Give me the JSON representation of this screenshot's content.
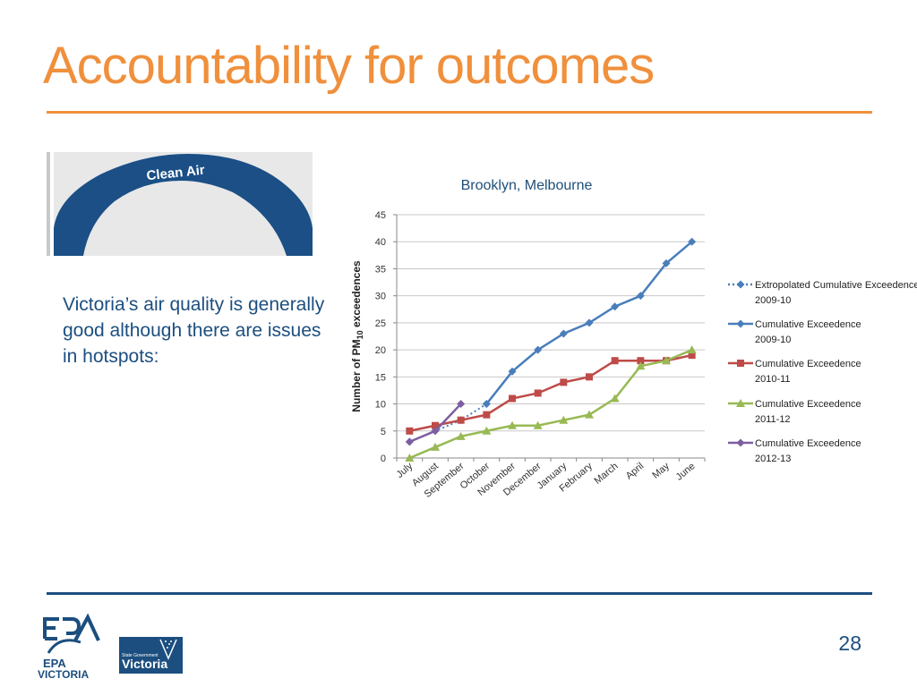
{
  "slide": {
    "title": "Accountability for outcomes",
    "body_text": "Victoria’s air quality is generally good although there are issues in hotspots:",
    "page_number": "28",
    "sign_text": "Clean Air",
    "colors": {
      "title": "#f0903c",
      "rule_top": "#f0903c",
      "rule_bottom": "#1c4e7f",
      "body_text": "#1c4e7f",
      "sign_blue": "#1b4f86"
    }
  },
  "logos": {
    "epa": {
      "line1": "EPA",
      "line2": "VICTORIA"
    },
    "vic": {
      "line1": "State Government",
      "line2": "Victoria"
    }
  },
  "chart_data": {
    "type": "line",
    "title": "Brooklyn, Melbourne",
    "ylabel_prefix": "Number of PM",
    "ylabel_sub": "10",
    "ylabel_suffix": " exceedences",
    "categories": [
      "July",
      "August",
      "September",
      "October",
      "November",
      "December",
      "January",
      "February",
      "March",
      "April",
      "May",
      "June"
    ],
    "ylim": [
      0,
      45
    ],
    "yticks": [
      0,
      5,
      10,
      15,
      20,
      25,
      30,
      35,
      40,
      45
    ],
    "grid": true,
    "legend_position": "right",
    "series": [
      {
        "name": "Extropolated Cumulative Exceedence 2009-10",
        "values": [
          3,
          5,
          7,
          10,
          null,
          null,
          null,
          null,
          null,
          null,
          null,
          null
        ],
        "color": "#4a7ebb",
        "marker": "diamond",
        "dashed": true
      },
      {
        "name": "Cumulative Exceedence 2009-10",
        "values": [
          null,
          null,
          null,
          10,
          16,
          20,
          23,
          25,
          28,
          30,
          36,
          40
        ],
        "color": "#4a7ebb",
        "marker": "diamond",
        "dashed": false
      },
      {
        "name": "Cumulative Exceedence 2010-11",
        "values": [
          5,
          6,
          7,
          8,
          11,
          12,
          14,
          15,
          18,
          18,
          18,
          19
        ],
        "color": "#be4b48",
        "marker": "square",
        "dashed": false
      },
      {
        "name": "Cumulative Exceedence 2011-12",
        "values": [
          0,
          2,
          4,
          5,
          6,
          6,
          7,
          8,
          11,
          17,
          18,
          20
        ],
        "color": "#98b954",
        "marker": "triangle",
        "dashed": false
      },
      {
        "name": "Cumulative Exceedence 2012-13",
        "values": [
          3,
          5,
          10,
          null,
          null,
          null,
          null,
          null,
          null,
          null,
          null,
          null
        ],
        "color": "#7d5fa0",
        "marker": "diamond",
        "dashed": false
      }
    ]
  }
}
